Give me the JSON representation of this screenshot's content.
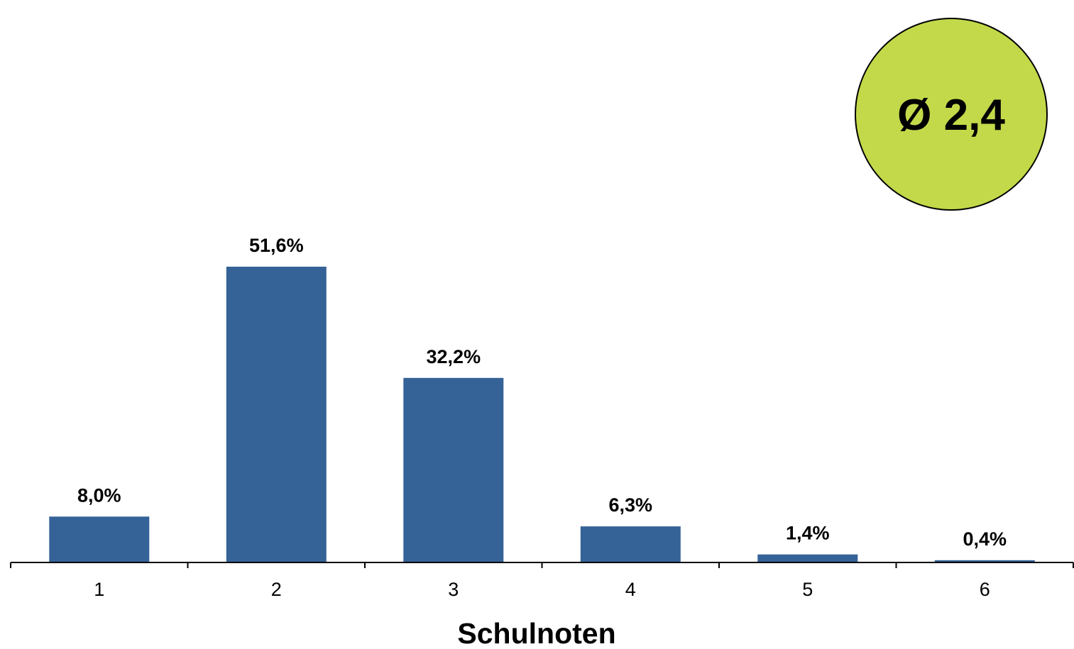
{
  "chart_data": {
    "type": "bar",
    "categories": [
      "1",
      "2",
      "3",
      "4",
      "5",
      "6"
    ],
    "values": [
      8.0,
      51.6,
      32.2,
      6.3,
      1.4,
      0.4
    ],
    "value_labels": [
      "8,0%",
      "51,6%",
      "32,2%",
      "6,3%",
      "1,4%",
      "0,4%"
    ],
    "xlabel": "Schulnoten",
    "ylabel": "",
    "ylim": [
      0,
      60
    ],
    "grid": false,
    "legend": "none",
    "bar_color": "#356297"
  },
  "badge": {
    "text": "Ø 2,4",
    "fill_color": "#c3d94a",
    "stroke_color": "#000000"
  }
}
